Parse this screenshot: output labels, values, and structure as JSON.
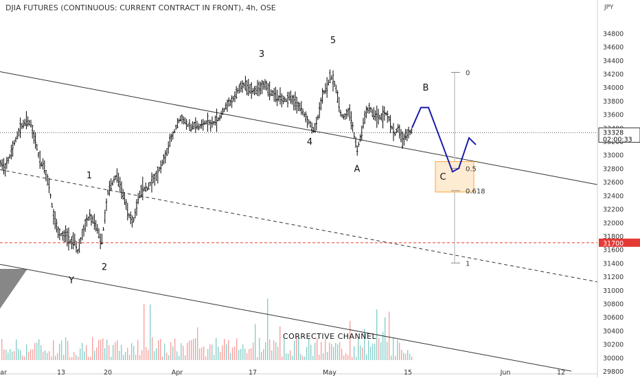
{
  "chart_data": {
    "type": "candlestick",
    "title": "DJIA FUTURES (CONTINUOUS: CURRENT CONTRACT IN FRONT), 4h, OSE",
    "currency": "JPY",
    "y_ticks": [
      34800,
      34600,
      34400,
      34200,
      34000,
      33800,
      33600,
      33400,
      33200,
      33000,
      32800,
      32600,
      32400,
      32200,
      32000,
      31800,
      31600,
      31400,
      31200,
      31000,
      30800,
      30600,
      30400,
      30200,
      30000,
      29800
    ],
    "ylim": [
      29750,
      35250
    ],
    "x_ticks": [
      "ar",
      "13",
      "20",
      "Apr",
      "17",
      "May",
      "15",
      "Jun",
      "12"
    ],
    "last_price": {
      "value": 33328,
      "label": "33328",
      "countdown": "02:00:33"
    },
    "level_line": {
      "value": 31700,
      "label": "31700"
    },
    "price_path": [
      {
        "x": 0,
        "y": 32900
      },
      {
        "x": 8,
        "y": 32800
      },
      {
        "x": 15,
        "y": 33000
      },
      {
        "x": 22,
        "y": 33200
      },
      {
        "x": 30,
        "y": 33400
      },
      {
        "x": 38,
        "y": 33500
      },
      {
        "x": 45,
        "y": 33450
      },
      {
        "x": 52,
        "y": 33200
      },
      {
        "x": 58,
        "y": 32900
      },
      {
        "x": 65,
        "y": 32800
      },
      {
        "x": 72,
        "y": 32500
      },
      {
        "x": 78,
        "y": 32100
      },
      {
        "x": 84,
        "y": 31900
      },
      {
        "x": 90,
        "y": 31800
      },
      {
        "x": 96,
        "y": 31850
      },
      {
        "x": 102,
        "y": 31700
      },
      {
        "x": 108,
        "y": 31750
      },
      {
        "x": 114,
        "y": 31550
      },
      {
        "x": 119,
        "y": 31800
      },
      {
        "x": 125,
        "y": 32000
      },
      {
        "x": 131,
        "y": 32100
      },
      {
        "x": 137,
        "y": 32000
      },
      {
        "x": 143,
        "y": 31850
      },
      {
        "x": 148,
        "y": 31700
      },
      {
        "x": 153,
        "y": 32100
      },
      {
        "x": 158,
        "y": 32500
      },
      {
        "x": 164,
        "y": 32600
      },
      {
        "x": 170,
        "y": 32700
      },
      {
        "x": 176,
        "y": 32500
      },
      {
        "x": 182,
        "y": 32300
      },
      {
        "x": 188,
        "y": 32100
      },
      {
        "x": 194,
        "y": 32000
      },
      {
        "x": 200,
        "y": 32300
      },
      {
        "x": 207,
        "y": 32500
      },
      {
        "x": 214,
        "y": 32500
      },
      {
        "x": 221,
        "y": 32600
      },
      {
        "x": 228,
        "y": 32700
      },
      {
        "x": 235,
        "y": 32850
      },
      {
        "x": 242,
        "y": 33000
      },
      {
        "x": 248,
        "y": 33200
      },
      {
        "x": 254,
        "y": 33350
      },
      {
        "x": 260,
        "y": 33500
      },
      {
        "x": 266,
        "y": 33550
      },
      {
        "x": 272,
        "y": 33450
      },
      {
        "x": 278,
        "y": 33400
      },
      {
        "x": 284,
        "y": 33450
      },
      {
        "x": 290,
        "y": 33400
      },
      {
        "x": 296,
        "y": 33450
      },
      {
        "x": 302,
        "y": 33500
      },
      {
        "x": 308,
        "y": 33450
      },
      {
        "x": 314,
        "y": 33500
      },
      {
        "x": 320,
        "y": 33550
      },
      {
        "x": 326,
        "y": 33650
      },
      {
        "x": 332,
        "y": 33750
      },
      {
        "x": 338,
        "y": 33800
      },
      {
        "x": 344,
        "y": 33900
      },
      {
        "x": 350,
        "y": 34000
      },
      {
        "x": 356,
        "y": 34050
      },
      {
        "x": 362,
        "y": 34000
      },
      {
        "x": 368,
        "y": 33950
      },
      {
        "x": 374,
        "y": 33950
      },
      {
        "x": 380,
        "y": 34000
      },
      {
        "x": 386,
        "y": 34050
      },
      {
        "x": 392,
        "y": 33950
      },
      {
        "x": 398,
        "y": 33900
      },
      {
        "x": 404,
        "y": 33850
      },
      {
        "x": 410,
        "y": 33850
      },
      {
        "x": 416,
        "y": 33800
      },
      {
        "x": 422,
        "y": 33850
      },
      {
        "x": 428,
        "y": 33800
      },
      {
        "x": 434,
        "y": 33750
      },
      {
        "x": 440,
        "y": 33650
      },
      {
        "x": 446,
        "y": 33550
      },
      {
        "x": 452,
        "y": 33450
      },
      {
        "x": 458,
        "y": 33350
      },
      {
        "x": 464,
        "y": 33600
      },
      {
        "x": 470,
        "y": 33900
      },
      {
        "x": 476,
        "y": 34000
      },
      {
        "x": 481,
        "y": 34150
      },
      {
        "x": 486,
        "y": 34100
      },
      {
        "x": 491,
        "y": 33900
      },
      {
        "x": 496,
        "y": 33600
      },
      {
        "x": 502,
        "y": 33550
      },
      {
        "x": 508,
        "y": 33650
      },
      {
        "x": 514,
        "y": 33400
      },
      {
        "x": 520,
        "y": 33050
      },
      {
        "x": 526,
        "y": 33300
      },
      {
        "x": 532,
        "y": 33600
      },
      {
        "x": 538,
        "y": 33700
      },
      {
        "x": 544,
        "y": 33600
      },
      {
        "x": 550,
        "y": 33550
      },
      {
        "x": 556,
        "y": 33550
      },
      {
        "x": 562,
        "y": 33600
      },
      {
        "x": 568,
        "y": 33500
      },
      {
        "x": 574,
        "y": 33300
      },
      {
        "x": 580,
        "y": 33400
      },
      {
        "x": 586,
        "y": 33200
      },
      {
        "x": 592,
        "y": 33300
      },
      {
        "x": 598,
        "y": 33350
      }
    ],
    "projection_path": [
      {
        "x": 600,
        "y": 33400
      },
      {
        "x": 613,
        "y": 33700
      },
      {
        "x": 624,
        "y": 33700
      },
      {
        "x": 659,
        "y": 32750
      },
      {
        "x": 668,
        "y": 32800
      },
      {
        "x": 683,
        "y": 33250
      },
      {
        "x": 693,
        "y": 33150
      }
    ],
    "wave_labels": [
      {
        "text": "3",
        "x": 381,
        "y": 34450
      },
      {
        "text": "5",
        "x": 485,
        "y": 34650
      },
      {
        "text": "B",
        "x": 620,
        "y": 33950
      },
      {
        "text": "1",
        "x": 130,
        "y": 32650
      },
      {
        "text": "4",
        "x": 451,
        "y": 33150
      },
      {
        "text": "A",
        "x": 520,
        "y": 32750
      },
      {
        "text": "C",
        "x": 645,
        "y": 32630
      },
      {
        "text": "Y",
        "x": 104,
        "y": 31100
      },
      {
        "text": "2",
        "x": 152,
        "y": 31300
      }
    ],
    "fib": {
      "levels": [
        {
          "label": "0",
          "value": 34220
        },
        {
          "label": "0.5",
          "value": 32800
        },
        {
          "label": "0.618",
          "value": 32470
        },
        {
          "label": "1",
          "value": 31400
        }
      ],
      "box_value_range": [
        32450,
        32900
      ]
    },
    "channel_lines": [
      {
        "style": "solid",
        "from": {
          "x": 0,
          "y": 34230
        },
        "to": {
          "x": 870,
          "y": 32560
        }
      },
      {
        "style": "dashed",
        "from": {
          "x": 0,
          "y": 32780
        },
        "to": {
          "x": 870,
          "y": 31120
        }
      },
      {
        "style": "solid",
        "from": {
          "x": 0,
          "y": 31380
        },
        "to": {
          "x": 832,
          "y": 29800
        }
      }
    ],
    "annotation": "CORRECTIVE CHANNEL",
    "colors": {
      "up": "#26a69a",
      "down": "#ef5350",
      "candle": "#000000",
      "projection": "#1a1aa8",
      "level": "#e53935",
      "fib_box": "#f7a63a",
      "fib_line": "#c8c8c8",
      "channel": "#333333"
    }
  }
}
